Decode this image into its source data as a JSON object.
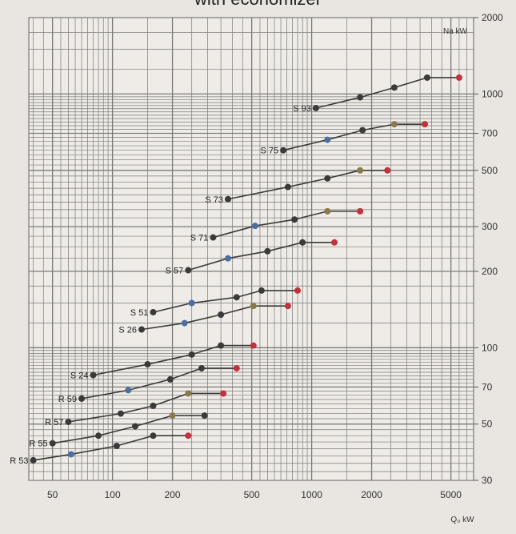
{
  "chart_data": {
    "type": "line",
    "title": "with economizer",
    "xlabel": "Q₀ kW",
    "ylabel": "Na kW",
    "x_scale": "log",
    "y_scale": "log",
    "xlim": [
      38,
      6500
    ],
    "ylim": [
      30,
      2000
    ],
    "grid": true,
    "x_tick_labels": [
      "50",
      "100",
      "200",
      "500",
      "1000",
      "2000",
      "5000"
    ],
    "x_ticks": [
      50,
      100,
      200,
      500,
      1000,
      2000,
      5000
    ],
    "y_tick_labels": [
      "30",
      "50",
      "70",
      "100",
      "200",
      "300",
      "500",
      "700",
      "1000",
      "2000"
    ],
    "y_ticks": [
      30,
      50,
      70,
      100,
      200,
      300,
      500,
      700,
      1000,
      2000
    ],
    "colors": {
      "line": "#3a3a3a",
      "dot": "#3a3a3a",
      "blue": "#4a6fa0",
      "red": "#c0323c",
      "olive": "#8a7a4a",
      "grid": "#7a7a7a",
      "bg": "#e9e6e1"
    },
    "series": [
      {
        "name": "S 93",
        "points": [
          [
            1050,
            880
          ],
          [
            1750,
            970
          ],
          [
            2600,
            1060
          ],
          [
            3800,
            1160
          ],
          [
            5500,
            1160
          ]
        ],
        "colors": [
          "dark",
          "dark",
          "dark",
          "dark",
          "red"
        ]
      },
      {
        "name": "S 75",
        "points": [
          [
            720,
            600
          ],
          [
            1200,
            660
          ],
          [
            1800,
            720
          ],
          [
            2600,
            760
          ],
          [
            3700,
            760
          ]
        ],
        "colors": [
          "dark",
          "blue",
          "dark",
          "olive",
          "red"
        ]
      },
      {
        "name": "S 73",
        "points": [
          [
            380,
            385
          ],
          [
            760,
            430
          ],
          [
            1200,
            465
          ],
          [
            1750,
            500
          ],
          [
            2400,
            500
          ]
        ],
        "colors": [
          "dark",
          "dark",
          "dark",
          "olive",
          "red"
        ]
      },
      {
        "name": "S 71",
        "points": [
          [
            320,
            272
          ],
          [
            520,
            302
          ],
          [
            820,
            320
          ],
          [
            1200,
            345
          ],
          [
            1750,
            345
          ]
        ],
        "colors": [
          "dark",
          "blue",
          "dark",
          "olive",
          "red"
        ]
      },
      {
        "name": "S 57",
        "points": [
          [
            240,
            202
          ],
          [
            380,
            225
          ],
          [
            600,
            240
          ],
          [
            900,
            260
          ],
          [
            1300,
            260
          ]
        ],
        "colors": [
          "dark",
          "blue",
          "dark",
          "dark",
          "red"
        ]
      },
      {
        "name": "S 51",
        "points": [
          [
            160,
            138
          ],
          [
            250,
            150
          ],
          [
            420,
            158
          ],
          [
            560,
            168
          ],
          [
            850,
            168
          ]
        ],
        "colors": [
          "dark",
          "blue",
          "dark",
          "dark",
          "red"
        ]
      },
      {
        "name": "S 26",
        "points": [
          [
            140,
            118
          ],
          [
            230,
            125
          ],
          [
            350,
            135
          ],
          [
            510,
            146
          ],
          [
            760,
            146
          ]
        ],
        "colors": [
          "dark",
          "blue",
          "dark",
          "olive",
          "red"
        ]
      },
      {
        "name": "S 24",
        "points": [
          [
            80,
            78
          ],
          [
            150,
            86
          ],
          [
            250,
            94
          ],
          [
            350,
            102
          ],
          [
            510,
            102
          ]
        ],
        "colors": [
          "dark",
          "dark",
          "dark",
          "dark",
          "red"
        ]
      },
      {
        "name": "R 59",
        "points": [
          [
            70,
            63
          ],
          [
            120,
            68
          ],
          [
            195,
            75
          ],
          [
            280,
            83
          ],
          [
            420,
            83
          ]
        ],
        "colors": [
          "dark",
          "blue",
          "dark",
          "dark",
          "red"
        ]
      },
      {
        "name": "R 57",
        "points": [
          [
            60,
            51
          ],
          [
            110,
            55
          ],
          [
            160,
            59
          ],
          [
            240,
            66
          ],
          [
            360,
            66
          ]
        ],
        "colors": [
          "dark",
          "dark",
          "dark",
          "olive",
          "red"
        ]
      },
      {
        "name": "R 55",
        "points": [
          [
            50,
            42
          ],
          [
            85,
            45
          ],
          [
            130,
            49
          ],
          [
            200,
            54
          ],
          [
            290,
            54
          ]
        ],
        "colors": [
          "dark",
          "dark",
          "dark",
          "olive",
          "dark"
        ]
      },
      {
        "name": "R 53",
        "points": [
          [
            40,
            36
          ],
          [
            62,
            38
          ],
          [
            105,
            41
          ],
          [
            160,
            45
          ],
          [
            240,
            45
          ]
        ],
        "colors": [
          "dark",
          "blue",
          "dark",
          "dark",
          "red"
        ]
      }
    ]
  }
}
